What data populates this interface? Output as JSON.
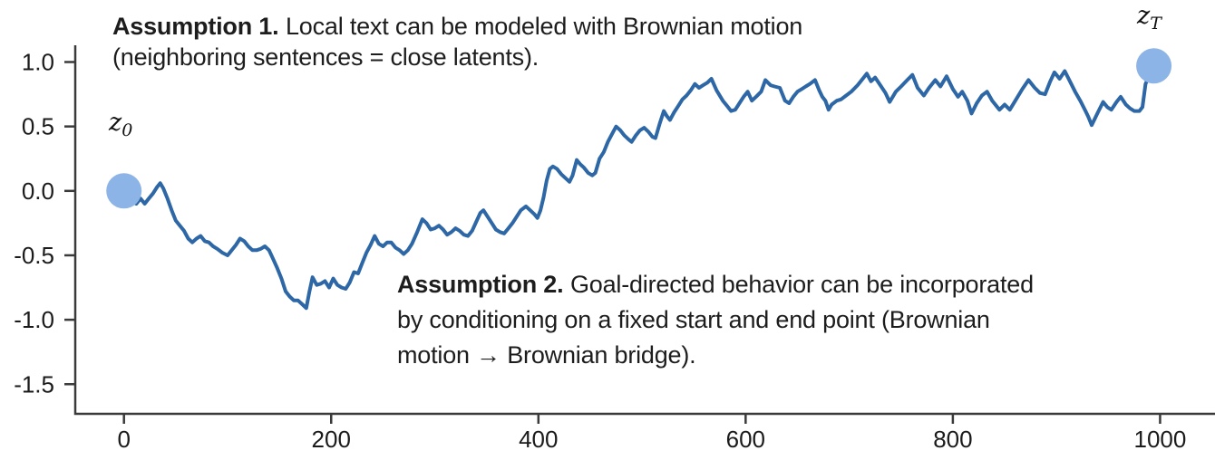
{
  "figure": {
    "annotations": {
      "assumption1": {
        "title": "Assumption 1.",
        "lines": [
          "Local text can be modeled with Brownian motion",
          "(neighboring sentences = close latents)."
        ]
      },
      "assumption2": {
        "title": "Assumption 2.",
        "lines": [
          "Goal-directed behavior can be incorporated",
          "by conditioning on a fixed start and end point (Brownian",
          "motion → Brownian bridge)."
        ]
      },
      "start_point_label": {
        "base": "z",
        "sub": "0"
      },
      "end_point_label": {
        "base": "z",
        "sub": "T"
      }
    }
  },
  "chart_data": {
    "type": "line",
    "title": "",
    "xlabel": "",
    "ylabel": "",
    "grid": false,
    "legend": null,
    "xlim": [
      -47,
      1053
    ],
    "ylim": [
      -1.73,
      1.13
    ],
    "x_ticks": [
      {
        "v": 0,
        "label": "0"
      },
      {
        "v": 200,
        "label": "200"
      },
      {
        "v": 400,
        "label": "400"
      },
      {
        "v": 600,
        "label": "600"
      },
      {
        "v": 800,
        "label": "800"
      },
      {
        "v": 1000,
        "label": "1000"
      }
    ],
    "y_ticks": [
      {
        "v": 1.0,
        "label": "1.0"
      },
      {
        "v": 0.5,
        "label": "0.5"
      },
      {
        "v": 0.0,
        "label": "0.0"
      },
      {
        "v": -0.5,
        "label": "-0.5"
      },
      {
        "v": -1.0,
        "label": "-1.0"
      },
      {
        "v": -1.5,
        "label": "-1.5"
      }
    ],
    "axis_color": "#3a3a3a",
    "line_color": "#2d67a6",
    "marker_color": "#8db4e6",
    "markers": [
      {
        "id": "z0",
        "x": 0,
        "y": 0.0
      },
      {
        "id": "zT",
        "x": 994,
        "y": 0.97
      }
    ],
    "series": [
      {
        "name": "brownian-bridge-latent-trajectory",
        "points": [
          [
            0,
            0.0
          ],
          [
            4,
            -0.03
          ],
          [
            8,
            -0.08
          ],
          [
            12,
            -0.1
          ],
          [
            16,
            -0.06
          ],
          [
            20,
            -0.1
          ],
          [
            24,
            -0.06
          ],
          [
            28,
            -0.02
          ],
          [
            32,
            0.03
          ],
          [
            35,
            0.06
          ],
          [
            38,
            0.02
          ],
          [
            42,
            -0.06
          ],
          [
            46,
            -0.15
          ],
          [
            50,
            -0.23
          ],
          [
            54,
            -0.27
          ],
          [
            58,
            -0.31
          ],
          [
            62,
            -0.37
          ],
          [
            66,
            -0.4
          ],
          [
            70,
            -0.37
          ],
          [
            74,
            -0.35
          ],
          [
            78,
            -0.39
          ],
          [
            82,
            -0.4
          ],
          [
            86,
            -0.43
          ],
          [
            90,
            -0.45
          ],
          [
            95,
            -0.48
          ],
          [
            100,
            -0.5
          ],
          [
            104,
            -0.46
          ],
          [
            108,
            -0.42
          ],
          [
            112,
            -0.37
          ],
          [
            116,
            -0.39
          ],
          [
            120,
            -0.43
          ],
          [
            124,
            -0.46
          ],
          [
            128,
            -0.46
          ],
          [
            132,
            -0.45
          ],
          [
            136,
            -0.43
          ],
          [
            140,
            -0.46
          ],
          [
            144,
            -0.53
          ],
          [
            148,
            -0.6
          ],
          [
            152,
            -0.68
          ],
          [
            156,
            -0.78
          ],
          [
            160,
            -0.82
          ],
          [
            164,
            -0.85
          ],
          [
            168,
            -0.85
          ],
          [
            172,
            -0.88
          ],
          [
            176,
            -0.91
          ],
          [
            179,
            -0.78
          ],
          [
            182,
            -0.67
          ],
          [
            186,
            -0.73
          ],
          [
            190,
            -0.72
          ],
          [
            194,
            -0.7
          ],
          [
            198,
            -0.75
          ],
          [
            202,
            -0.68
          ],
          [
            206,
            -0.73
          ],
          [
            210,
            -0.75
          ],
          [
            214,
            -0.76
          ],
          [
            218,
            -0.71
          ],
          [
            222,
            -0.63
          ],
          [
            226,
            -0.64
          ],
          [
            230,
            -0.56
          ],
          [
            234,
            -0.48
          ],
          [
            238,
            -0.42
          ],
          [
            242,
            -0.35
          ],
          [
            246,
            -0.41
          ],
          [
            250,
            -0.43
          ],
          [
            254,
            -0.4
          ],
          [
            258,
            -0.4
          ],
          [
            262,
            -0.44
          ],
          [
            266,
            -0.46
          ],
          [
            270,
            -0.49
          ],
          [
            274,
            -0.46
          ],
          [
            278,
            -0.41
          ],
          [
            283,
            -0.32
          ],
          [
            288,
            -0.22
          ],
          [
            292,
            -0.25
          ],
          [
            296,
            -0.3
          ],
          [
            300,
            -0.29
          ],
          [
            304,
            -0.27
          ],
          [
            308,
            -0.3
          ],
          [
            312,
            -0.34
          ],
          [
            316,
            -0.32
          ],
          [
            320,
            -0.29
          ],
          [
            324,
            -0.31
          ],
          [
            328,
            -0.34
          ],
          [
            332,
            -0.35
          ],
          [
            336,
            -0.31
          ],
          [
            340,
            -0.24
          ],
          [
            344,
            -0.17
          ],
          [
            347,
            -0.15
          ],
          [
            351,
            -0.2
          ],
          [
            355,
            -0.25
          ],
          [
            359,
            -0.3
          ],
          [
            363,
            -0.32
          ],
          [
            367,
            -0.33
          ],
          [
            371,
            -0.29
          ],
          [
            375,
            -0.25
          ],
          [
            379,
            -0.2
          ],
          [
            383,
            -0.15
          ],
          [
            388,
            -0.12
          ],
          [
            392,
            -0.15
          ],
          [
            396,
            -0.18
          ],
          [
            399,
            -0.21
          ],
          [
            402,
            -0.15
          ],
          [
            405,
            -0.05
          ],
          [
            408,
            0.08
          ],
          [
            411,
            0.17
          ],
          [
            414,
            0.19
          ],
          [
            418,
            0.17
          ],
          [
            422,
            0.13
          ],
          [
            426,
            0.1
          ],
          [
            430,
            0.07
          ],
          [
            433,
            0.12
          ],
          [
            437,
            0.24
          ],
          [
            440,
            0.21
          ],
          [
            444,
            0.18
          ],
          [
            448,
            0.14
          ],
          [
            452,
            0.12
          ],
          [
            455,
            0.14
          ],
          [
            459,
            0.25
          ],
          [
            463,
            0.3
          ],
          [
            467,
            0.38
          ],
          [
            471,
            0.44
          ],
          [
            475,
            0.5
          ],
          [
            479,
            0.47
          ],
          [
            483,
            0.43
          ],
          [
            487,
            0.4
          ],
          [
            490,
            0.38
          ],
          [
            494,
            0.43
          ],
          [
            498,
            0.47
          ],
          [
            502,
            0.49
          ],
          [
            506,
            0.46
          ],
          [
            510,
            0.42
          ],
          [
            513,
            0.41
          ],
          [
            517,
            0.52
          ],
          [
            521,
            0.62
          ],
          [
            524,
            0.58
          ],
          [
            527,
            0.55
          ],
          [
            531,
            0.61
          ],
          [
            535,
            0.66
          ],
          [
            539,
            0.71
          ],
          [
            543,
            0.74
          ],
          [
            547,
            0.78
          ],
          [
            551,
            0.83
          ],
          [
            555,
            0.8
          ],
          [
            559,
            0.82
          ],
          [
            563,
            0.84
          ],
          [
            567,
            0.87
          ],
          [
            572,
            0.78
          ],
          [
            578,
            0.7
          ],
          [
            582,
            0.66
          ],
          [
            586,
            0.62
          ],
          [
            590,
            0.63
          ],
          [
            594,
            0.68
          ],
          [
            598,
            0.73
          ],
          [
            602,
            0.77
          ],
          [
            606,
            0.7
          ],
          [
            610,
            0.73
          ],
          [
            615,
            0.77
          ],
          [
            619,
            0.86
          ],
          [
            624,
            0.82
          ],
          [
            628,
            0.81
          ],
          [
            633,
            0.8
          ],
          [
            638,
            0.7
          ],
          [
            642,
            0.68
          ],
          [
            646,
            0.73
          ],
          [
            650,
            0.77
          ],
          [
            654,
            0.79
          ],
          [
            658,
            0.81
          ],
          [
            662,
            0.83
          ],
          [
            667,
            0.86
          ],
          [
            671,
            0.78
          ],
          [
            674,
            0.73
          ],
          [
            677,
            0.7
          ],
          [
            680,
            0.63
          ],
          [
            683,
            0.67
          ],
          [
            688,
            0.7
          ],
          [
            692,
            0.71
          ],
          [
            697,
            0.74
          ],
          [
            702,
            0.77
          ],
          [
            708,
            0.82
          ],
          [
            713,
            0.87
          ],
          [
            717,
            0.91
          ],
          [
            721,
            0.85
          ],
          [
            725,
            0.88
          ],
          [
            730,
            0.82
          ],
          [
            735,
            0.76
          ],
          [
            739,
            0.69
          ],
          [
            745,
            0.77
          ],
          [
            750,
            0.81
          ],
          [
            756,
            0.86
          ],
          [
            761,
            0.9
          ],
          [
            766,
            0.8
          ],
          [
            772,
            0.74
          ],
          [
            777,
            0.8
          ],
          [
            783,
            0.86
          ],
          [
            788,
            0.81
          ],
          [
            794,
            0.89
          ],
          [
            800,
            0.79
          ],
          [
            805,
            0.73
          ],
          [
            809,
            0.77
          ],
          [
            814,
            0.7
          ],
          [
            818,
            0.6
          ],
          [
            823,
            0.68
          ],
          [
            828,
            0.74
          ],
          [
            833,
            0.77
          ],
          [
            838,
            0.7
          ],
          [
            845,
            0.63
          ],
          [
            850,
            0.67
          ],
          [
            855,
            0.63
          ],
          [
            861,
            0.71
          ],
          [
            867,
            0.79
          ],
          [
            873,
            0.86
          ],
          [
            879,
            0.8
          ],
          [
            884,
            0.76
          ],
          [
            889,
            0.75
          ],
          [
            894,
            0.85
          ],
          [
            898,
            0.92
          ],
          [
            903,
            0.87
          ],
          [
            908,
            0.93
          ],
          [
            913,
            0.85
          ],
          [
            918,
            0.77
          ],
          [
            923,
            0.7
          ],
          [
            928,
            0.62
          ],
          [
            931,
            0.57
          ],
          [
            934,
            0.51
          ],
          [
            940,
            0.61
          ],
          [
            945,
            0.69
          ],
          [
            949,
            0.65
          ],
          [
            953,
            0.63
          ],
          [
            958,
            0.69
          ],
          [
            962,
            0.73
          ],
          [
            967,
            0.67
          ],
          [
            971,
            0.64
          ],
          [
            975,
            0.62
          ],
          [
            980,
            0.62
          ],
          [
            983,
            0.65
          ],
          [
            986,
            0.83
          ],
          [
            990,
            0.9
          ],
          [
            994,
            0.97
          ]
        ]
      }
    ]
  }
}
